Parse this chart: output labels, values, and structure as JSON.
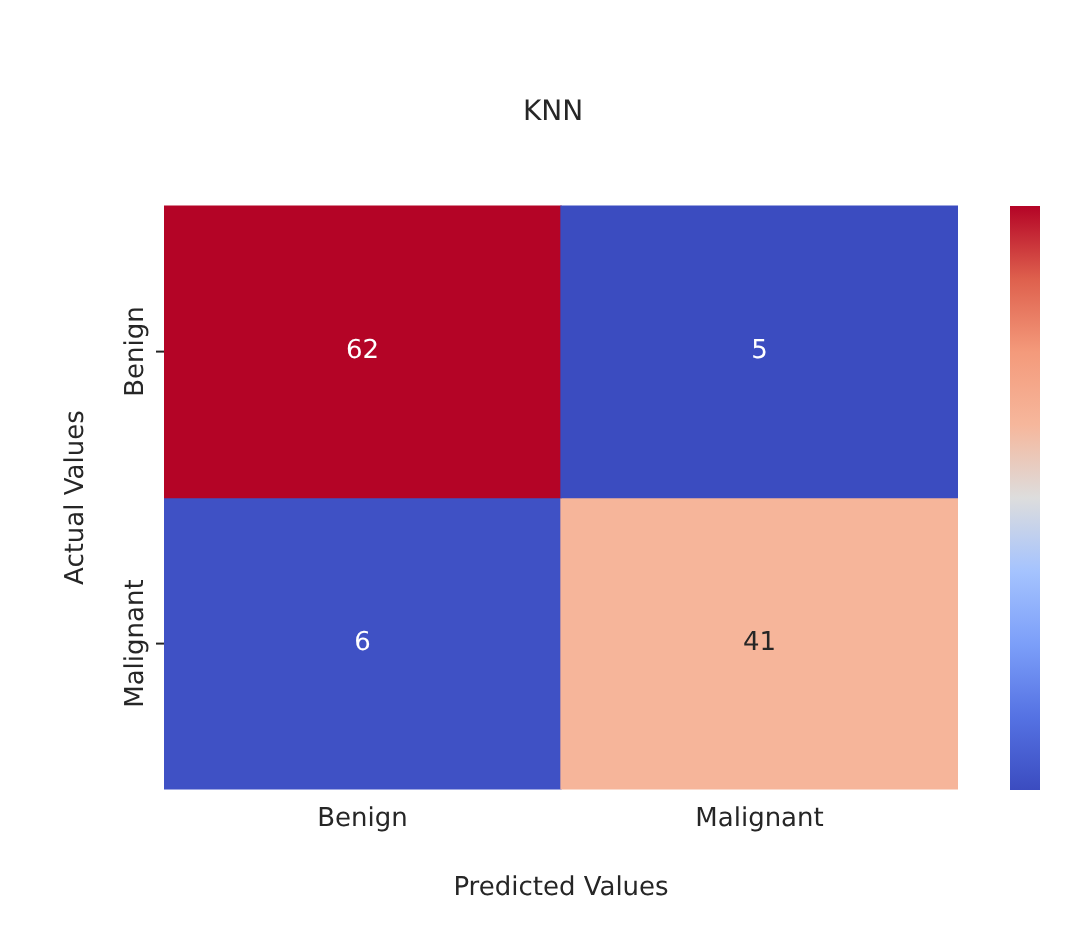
{
  "chart_data": {
    "type": "heatmap",
    "title": "KNN",
    "xlabel": "Predicted Values",
    "ylabel": "Actual Values",
    "categories": [
      "Benign",
      "Malignant"
    ],
    "y_categories": [
      "Benign",
      "Malignant"
    ],
    "cells": [
      [
        62,
        5
      ],
      [
        6,
        41
      ]
    ],
    "data_labels": true
  }
}
